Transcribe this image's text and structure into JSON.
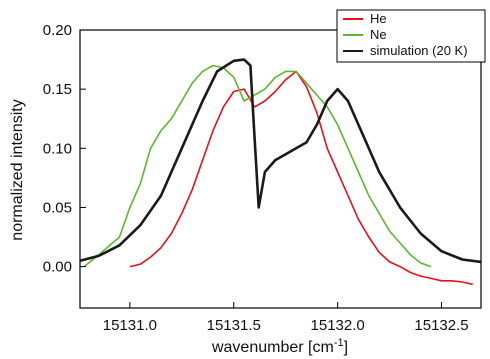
{
  "chart_data": {
    "type": "line",
    "title": "",
    "xlabel": "wavenumber [cm",
    "xlabel_superscript": "-1",
    "xlabel_close": "]",
    "ylabel": "normalized intensity",
    "xlim": [
      15130.76,
      15132.69
    ],
    "ylim": [
      -0.035,
      0.2
    ],
    "x_ticks": [
      15131.0,
      15131.5,
      15132.0,
      15132.5
    ],
    "x_tick_labels": [
      "15131.0",
      "15131.5",
      "15132.0",
      "15132.5"
    ],
    "y_ticks": [
      0.0,
      0.05,
      0.1,
      0.15,
      0.2
    ],
    "y_tick_labels": [
      "0.00",
      "0.05",
      "0.10",
      "0.15",
      "0.20"
    ],
    "grid": false,
    "legend_position": "top-right",
    "series": [
      {
        "name": "He",
        "color": "#e8101c",
        "x": [
          15131.0,
          15131.05,
          15131.1,
          15131.15,
          15131.2,
          15131.25,
          15131.3,
          15131.35,
          15131.4,
          15131.45,
          15131.5,
          15131.55,
          15131.6,
          15131.65,
          15131.7,
          15131.75,
          15131.8,
          15131.85,
          15131.9,
          15131.95,
          15132.0,
          15132.05,
          15132.1,
          15132.15,
          15132.2,
          15132.25,
          15132.3,
          15132.35,
          15132.4,
          15132.45,
          15132.5,
          15132.55,
          15132.6,
          15132.65
        ],
        "y": [
          0.0,
          0.002,
          0.008,
          0.016,
          0.028,
          0.045,
          0.065,
          0.09,
          0.115,
          0.135,
          0.148,
          0.15,
          0.135,
          0.14,
          0.148,
          0.158,
          0.165,
          0.152,
          0.13,
          0.1,
          0.08,
          0.06,
          0.04,
          0.025,
          0.012,
          0.004,
          0.0,
          -0.005,
          -0.008,
          -0.01,
          -0.012,
          -0.012,
          -0.013,
          -0.015
        ]
      },
      {
        "name": "Ne",
        "color": "#5cb82a",
        "x": [
          15130.78,
          15130.85,
          15130.95,
          15131.0,
          15131.05,
          15131.1,
          15131.15,
          15131.2,
          15131.25,
          15131.3,
          15131.35,
          15131.4,
          15131.45,
          15131.5,
          15131.55,
          15131.6,
          15131.65,
          15131.7,
          15131.75,
          15131.8,
          15131.85,
          15131.9,
          15131.95,
          15132.0,
          15132.05,
          15132.1,
          15132.15,
          15132.2,
          15132.25,
          15132.3,
          15132.35,
          15132.4,
          15132.45
        ],
        "y": [
          0.0,
          0.01,
          0.025,
          0.05,
          0.07,
          0.1,
          0.115,
          0.125,
          0.14,
          0.155,
          0.165,
          0.17,
          0.168,
          0.16,
          0.14,
          0.145,
          0.15,
          0.16,
          0.165,
          0.165,
          0.155,
          0.145,
          0.135,
          0.12,
          0.1,
          0.08,
          0.06,
          0.045,
          0.03,
          0.02,
          0.01,
          0.003,
          0.0
        ]
      },
      {
        "name": "simulation (20 K)",
        "color": "#1a1a1a",
        "x": [
          15130.76,
          15130.85,
          15130.95,
          15131.05,
          15131.15,
          15131.25,
          15131.35,
          15131.42,
          15131.5,
          15131.55,
          15131.58,
          15131.6,
          15131.62,
          15131.65,
          15131.7,
          15131.75,
          15131.8,
          15131.85,
          15131.9,
          15131.95,
          15132.0,
          15132.05,
          15132.1,
          15132.2,
          15132.3,
          15132.4,
          15132.5,
          15132.6,
          15132.69
        ],
        "y": [
          0.005,
          0.009,
          0.018,
          0.035,
          0.06,
          0.1,
          0.14,
          0.165,
          0.174,
          0.175,
          0.17,
          0.11,
          0.05,
          0.08,
          0.09,
          0.095,
          0.1,
          0.105,
          0.12,
          0.14,
          0.15,
          0.14,
          0.12,
          0.08,
          0.05,
          0.028,
          0.013,
          0.006,
          0.004
        ]
      }
    ]
  }
}
